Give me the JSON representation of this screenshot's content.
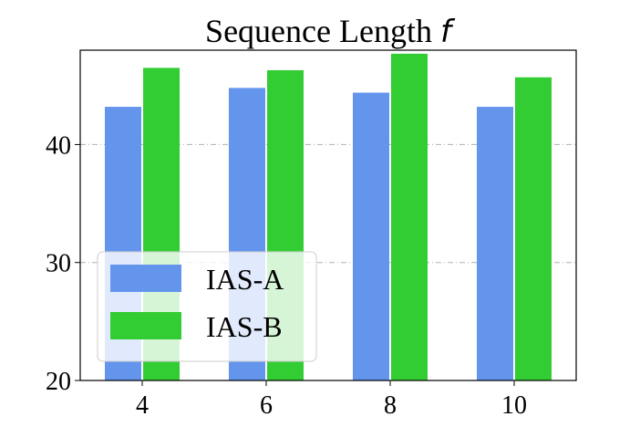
{
  "chart_data": {
    "type": "bar",
    "title": "Sequence Length ",
    "title_variable": "f",
    "xlabel": "",
    "ylabel": "",
    "categories": [
      "4",
      "6",
      "8",
      "10"
    ],
    "series": [
      {
        "name": "IAS-A",
        "color": "#6495ED",
        "values": [
          43.2,
          44.8,
          44.4,
          43.2
        ]
      },
      {
        "name": "IAS-B",
        "color": "#32CD32",
        "values": [
          46.5,
          46.3,
          47.7,
          45.7
        ]
      }
    ],
    "ylim": [
      20,
      48
    ],
    "yticks": [
      20,
      30,
      40
    ],
    "grid": "horizontal dash-dot",
    "legend_position": "lower-left"
  }
}
